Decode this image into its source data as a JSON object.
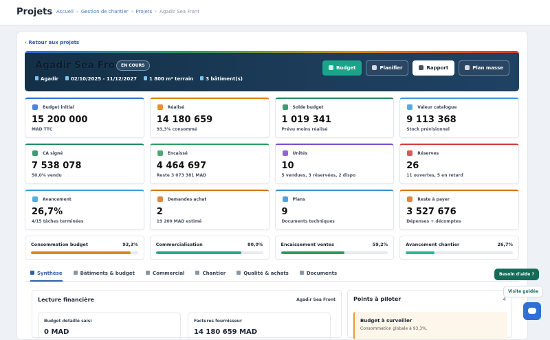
{
  "header": {
    "title": "Projets",
    "breadcrumb": [
      "Accueil",
      "Gestion de chantier",
      "Projets",
      "Agadir Sea Front"
    ]
  },
  "back_link": "Retour aux projets",
  "project": {
    "name": "Agadir Sea Front",
    "status": "EN COURS",
    "meta": [
      "Agadir",
      "02/10/2025 - 11/12/2027",
      "1 800 m² terrain",
      "3 bâtiment(s)"
    ],
    "actions": [
      "Budget",
      "Planifier",
      "Rapport",
      "Plan masse"
    ]
  },
  "kpis": [
    {
      "label": "Budget initial",
      "value": "15 200 000",
      "sub": "MAD TTC",
      "color": "#2f6fd6"
    },
    {
      "label": "Réalisé",
      "value": "14 180 659",
      "sub": "93,3% consommé",
      "color": "#e07a12"
    },
    {
      "label": "Solde budget",
      "value": "1 019 341",
      "sub": "Prévu moins réalisé",
      "color": "#1f8a5b"
    },
    {
      "label": "Valeur catalogue",
      "value": "9 113 368",
      "sub": "Stock prévisionnel",
      "color": "#3b9ad9"
    },
    {
      "label": "CA signé",
      "value": "7 538 078",
      "sub": "50,0% vendu",
      "color": "#1e8a5a"
    },
    {
      "label": "Encaissé",
      "value": "4 464 697",
      "sub": "Reste 3 073 381 MAD",
      "color": "#2a9d5c"
    },
    {
      "label": "Unités",
      "value": "10",
      "sub": "5 vendues, 3 réservées, 2 dispo",
      "color": "#7c4dcc"
    },
    {
      "label": "Réserves",
      "value": "26",
      "sub": "11 ouvertes, 5 en retard",
      "color": "#d63a3a"
    },
    {
      "label": "Avancement",
      "value": "26,7%",
      "sub": "4/15 tâches terminées",
      "color": "#3aa0d8"
    },
    {
      "label": "Demandes achat",
      "value": "2",
      "sub": "19 200 MAD estimé",
      "color": "#d9731a"
    },
    {
      "label": "Plans",
      "value": "9",
      "sub": "Documents techniques",
      "color": "#3a8fd0"
    },
    {
      "label": "Reste à payer",
      "value": "3 527 676",
      "sub": "Dépenses + décomptes",
      "color": "#d9731a"
    }
  ],
  "progress": {
    "labels": [
      "Consommation budget",
      "Commercialisation",
      "Encaissement ventes",
      "Avancement chantier"
    ],
    "values": [
      93.3,
      80.0,
      59.2,
      26.7
    ],
    "value_labels": [
      "93,3%",
      "80,0%",
      "59,2%",
      "26,7%"
    ],
    "colors": [
      "#d9891a",
      "#2aa58a",
      "#2f9a5e",
      "#2fb59a"
    ]
  },
  "tabs": [
    "Synthèse",
    "Bâtiments & budget",
    "Commercial",
    "Chantier",
    "Qualité & achats",
    "Documents"
  ],
  "finance": {
    "title": "Lecture financière",
    "project": "Agadir Sea Front",
    "cards": [
      {
        "label": "Budget détaillé saisi",
        "value": "0 MAD"
      },
      {
        "label": "Factures fournisseur",
        "value": "14 180 659 MAD"
      }
    ]
  },
  "points": {
    "title": "Points à piloter",
    "count": "4",
    "item_title": "Budget à surveiller",
    "item_text": "Consommation globale à 93,3%."
  },
  "help": {
    "button": "Besoin d'aide ?",
    "tour": "Visite guidée"
  }
}
